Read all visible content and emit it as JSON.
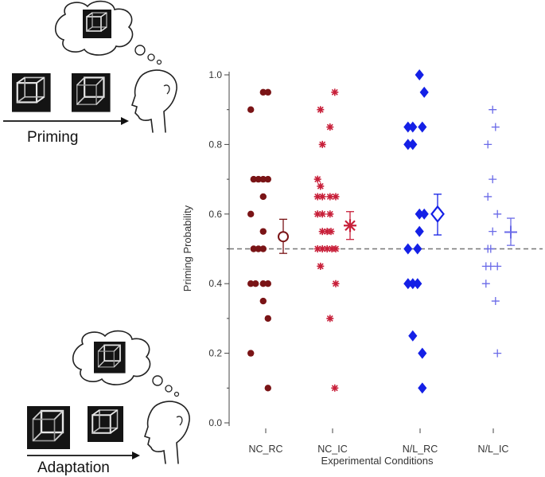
{
  "illustration": {
    "priming_label": "Priming",
    "adaptation_label": "Adaptation",
    "priming_cube_icons": [
      "thought-bubble-cube",
      "necker-cube-ambiguous",
      "necker-cube-biased",
      "head-profile"
    ],
    "adaptation_cube_icons": [
      "thought-bubble-cube",
      "necker-cube-biased",
      "necker-cube-ambiguous",
      "head-profile"
    ]
  },
  "chart_data": {
    "type": "scatter",
    "title": "",
    "xlabel": "Experimental Conditions",
    "ylabel": "Priming Probability",
    "ylim": [
      0,
      1
    ],
    "yticks": [
      0.0,
      0.2,
      0.4,
      0.6,
      0.8,
      1.0
    ],
    "ytick_labels": [
      "0.0",
      "0.2",
      "0.4",
      "0.6",
      "0.8",
      "1.0"
    ],
    "categories": [
      "NC_RC",
      "NC_IC",
      "N/L_RC",
      "N/L_IC"
    ],
    "reference_line": {
      "y": 0.5,
      "style": "dashed",
      "color": "#777777"
    },
    "series": [
      {
        "name": "NC_RC",
        "color": "#7a1416",
        "marker": "circle",
        "points": [
          {
            "dx": -0.18,
            "y": 0.9
          },
          {
            "dx": 0.08,
            "y": 0.95
          },
          {
            "dx": 0.18,
            "y": 0.95
          },
          {
            "dx": -0.12,
            "y": 0.7
          },
          {
            "dx": -0.02,
            "y": 0.7
          },
          {
            "dx": 0.08,
            "y": 0.7
          },
          {
            "dx": 0.18,
            "y": 0.7
          },
          {
            "dx": 0.08,
            "y": 0.65
          },
          {
            "dx": -0.18,
            "y": 0.6
          },
          {
            "dx": 0.08,
            "y": 0.55
          },
          {
            "dx": -0.12,
            "y": 0.5
          },
          {
            "dx": -0.02,
            "y": 0.5
          },
          {
            "dx": 0.08,
            "y": 0.5
          },
          {
            "dx": -0.18,
            "y": 0.4
          },
          {
            "dx": -0.08,
            "y": 0.4
          },
          {
            "dx": 0.08,
            "y": 0.4
          },
          {
            "dx": 0.18,
            "y": 0.4
          },
          {
            "dx": 0.08,
            "y": 0.35
          },
          {
            "dx": 0.18,
            "y": 0.3
          },
          {
            "dx": -0.18,
            "y": 0.2
          },
          {
            "dx": 0.18,
            "y": 0.1
          }
        ],
        "mean": 0.535,
        "err_low": 0.487,
        "err_high": 0.585
      },
      {
        "name": "NC_IC",
        "color": "#c8203a",
        "marker": "asterisk",
        "points": [
          {
            "dx": 0.18,
            "y": 0.95
          },
          {
            "dx": -0.12,
            "y": 0.9
          },
          {
            "dx": 0.08,
            "y": 0.85
          },
          {
            "dx": -0.08,
            "y": 0.8
          },
          {
            "dx": -0.18,
            "y": 0.7
          },
          {
            "dx": -0.12,
            "y": 0.68
          },
          {
            "dx": -0.18,
            "y": 0.65
          },
          {
            "dx": -0.08,
            "y": 0.65
          },
          {
            "dx": 0.08,
            "y": 0.65
          },
          {
            "dx": 0.2,
            "y": 0.65
          },
          {
            "dx": -0.18,
            "y": 0.6
          },
          {
            "dx": -0.08,
            "y": 0.6
          },
          {
            "dx": 0.08,
            "y": 0.6
          },
          {
            "dx": -0.08,
            "y": 0.55
          },
          {
            "dx": 0.02,
            "y": 0.55
          },
          {
            "dx": 0.1,
            "y": 0.55
          },
          {
            "dx": -0.18,
            "y": 0.5
          },
          {
            "dx": -0.08,
            "y": 0.5
          },
          {
            "dx": 0.02,
            "y": 0.5
          },
          {
            "dx": 0.12,
            "y": 0.5
          },
          {
            "dx": 0.2,
            "y": 0.5
          },
          {
            "dx": -0.12,
            "y": 0.45
          },
          {
            "dx": 0.2,
            "y": 0.4
          },
          {
            "dx": 0.08,
            "y": 0.3
          },
          {
            "dx": 0.18,
            "y": 0.1
          }
        ],
        "mean": 0.567,
        "err_low": 0.527,
        "err_high": 0.607
      },
      {
        "name": "N/L_RC",
        "color": "#1420e6",
        "marker": "diamond",
        "points": [
          {
            "dx": 0.12,
            "y": 1.0
          },
          {
            "dx": 0.22,
            "y": 0.95
          },
          {
            "dx": -0.12,
            "y": 0.85
          },
          {
            "dx": -0.02,
            "y": 0.85
          },
          {
            "dx": 0.18,
            "y": 0.85
          },
          {
            "dx": -0.12,
            "y": 0.8
          },
          {
            "dx": -0.02,
            "y": 0.8
          },
          {
            "dx": 0.12,
            "y": 0.6
          },
          {
            "dx": 0.22,
            "y": 0.6
          },
          {
            "dx": 0.12,
            "y": 0.55
          },
          {
            "dx": -0.12,
            "y": 0.5
          },
          {
            "dx": 0.08,
            "y": 0.5
          },
          {
            "dx": -0.12,
            "y": 0.4
          },
          {
            "dx": -0.02,
            "y": 0.4
          },
          {
            "dx": 0.08,
            "y": 0.4
          },
          {
            "dx": -0.02,
            "y": 0.25
          },
          {
            "dx": 0.18,
            "y": 0.2
          },
          {
            "dx": 0.18,
            "y": 0.1
          }
        ],
        "mean": 0.6,
        "err_low": 0.54,
        "err_high": 0.657
      },
      {
        "name": "N/L_IC",
        "color": "#6a6ae8",
        "marker": "plus",
        "points": [
          {
            "dx": 0.12,
            "y": 0.9
          },
          {
            "dx": 0.18,
            "y": 0.85
          },
          {
            "dx": 0.02,
            "y": 0.8
          },
          {
            "dx": 0.12,
            "y": 0.7
          },
          {
            "dx": 0.02,
            "y": 0.65
          },
          {
            "dx": 0.22,
            "y": 0.6
          },
          {
            "dx": 0.12,
            "y": 0.55
          },
          {
            "dx": 0.02,
            "y": 0.5
          },
          {
            "dx": 0.08,
            "y": 0.5
          },
          {
            "dx": -0.02,
            "y": 0.45
          },
          {
            "dx": 0.08,
            "y": 0.45
          },
          {
            "dx": 0.22,
            "y": 0.45
          },
          {
            "dx": -0.02,
            "y": 0.4
          },
          {
            "dx": 0.18,
            "y": 0.35
          },
          {
            "dx": 0.22,
            "y": 0.2
          }
        ],
        "mean": 0.548,
        "err_low": 0.51,
        "err_high": 0.588
      }
    ]
  }
}
